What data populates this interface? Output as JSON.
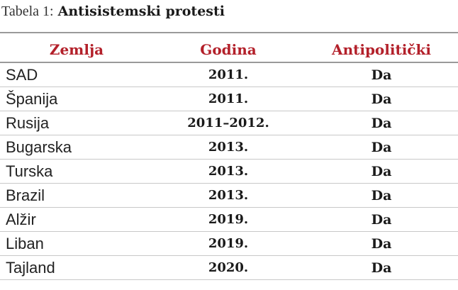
{
  "caption": {
    "label": "Tabela 1:",
    "title": "Antisistemski protesti"
  },
  "table": {
    "headers": [
      "Zemlja",
      "Godina",
      "Antipolitički"
    ],
    "rows": [
      [
        "SAD",
        "2011.",
        "Da"
      ],
      [
        "Španija",
        "2011.",
        "Da"
      ],
      [
        "Rusija",
        "2011–2012.",
        "Da"
      ],
      [
        "Bugarska",
        "2013.",
        "Da"
      ],
      [
        "Turska",
        "2013.",
        "Da"
      ],
      [
        "Brazil",
        "2013.",
        "Da"
      ],
      [
        "Alžir",
        "2019.",
        "Da"
      ],
      [
        "Liban",
        "2019.",
        "Da"
      ],
      [
        "Tajland",
        "2020.",
        "Da"
      ]
    ]
  }
}
